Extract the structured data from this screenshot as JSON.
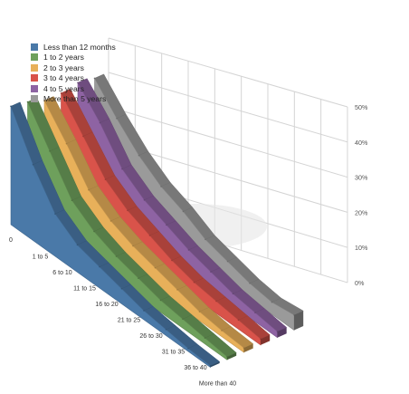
{
  "chart_data": {
    "type": "area",
    "style": "3d-ribbon",
    "categories": [
      "0",
      "1 to 5",
      "6 to 10",
      "11 to 15",
      "16 to 20",
      "21 to 25",
      "26 to 30",
      "31 to 35",
      "36 to 40",
      "More than 40"
    ],
    "y_ticks": [
      "0%",
      "10%",
      "20%",
      "30%",
      "40%",
      "50%"
    ],
    "ylim": [
      0,
      50
    ],
    "grid": true,
    "legend_position": "top-left",
    "series": [
      {
        "name": "Less than 12 months",
        "color": "#4a79a8",
        "values": [
          39,
          25,
          14,
          9,
          7,
          5,
          3,
          2,
          1,
          0.5
        ]
      },
      {
        "name": "1 to 2 years",
        "color": "#6ea05c",
        "values": [
          38,
          27,
          16,
          11,
          8,
          6,
          4,
          3,
          2,
          1
        ]
      },
      {
        "name": "2 to 3 years",
        "color": "#e8b05a",
        "values": [
          36,
          27,
          17,
          12,
          9,
          7,
          5,
          3,
          2,
          1.5
        ]
      },
      {
        "name": "3  to 4 years",
        "color": "#d9534a",
        "values": [
          36,
          27,
          18,
          13,
          10,
          7,
          5,
          4,
          3,
          2
        ]
      },
      {
        "name": "4 to 5 years",
        "color": "#8e63a3",
        "values": [
          37,
          29,
          19,
          14,
          11,
          8,
          6,
          4,
          3,
          2
        ]
      },
      {
        "name": "More than 5 years",
        "color": "#9a9a9a",
        "values": [
          36,
          28,
          21,
          16,
          13,
          9,
          7,
          5,
          4,
          5
        ]
      }
    ]
  }
}
